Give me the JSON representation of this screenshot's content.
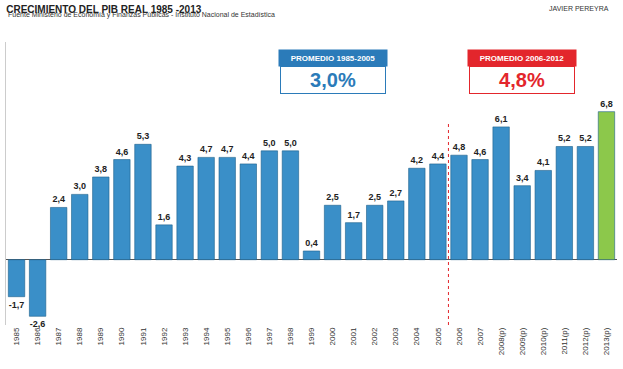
{
  "chart_data": {
    "type": "bar",
    "title": "CRECIMIENTO DEL PIB REAL 1985 -2013",
    "subtitle": "Fuente Ministerio de Economía y Finanzas Públicas - Instituto Nacional de Estadística",
    "credit": "JAVIER PEREYRA",
    "annotations": [
      {
        "title": "PROMEDIO 1985-2005",
        "text": "3,0%",
        "color": "#2b7bb9"
      },
      {
        "title": "PROMEDIO 2006-2012",
        "text": "4,8%",
        "color": "#e3262c"
      }
    ],
    "categories": [
      "1985",
      "1986",
      "1987",
      "1988",
      "1989",
      "1990",
      "1991",
      "1992",
      "1993",
      "1994",
      "1995",
      "1996",
      "1997",
      "1998",
      "1999",
      "2000",
      "2001",
      "2002",
      "2003",
      "2004",
      "2005",
      "2006",
      "2007",
      "2008(p)",
      "2009(p)",
      "2010(p)",
      "2011(p)",
      "2012(p)",
      "2013(p)"
    ],
    "values": [
      -1.7,
      -2.6,
      2.4,
      3.0,
      3.8,
      4.6,
      5.3,
      1.6,
      4.3,
      4.7,
      4.7,
      4.4,
      5.0,
      5.0,
      0.4,
      2.5,
      1.7,
      2.5,
      2.7,
      4.2,
      4.4,
      4.8,
      4.6,
      6.1,
      3.4,
      4.1,
      5.2,
      5.2,
      6.8
    ],
    "value_labels": [
      "-1,7",
      "-2,6",
      "2,4",
      "3,0",
      "3,8",
      "4,6",
      "5,3",
      "1,6",
      "4,3",
      "4,7",
      "4,7",
      "4,4",
      "5,0",
      "5,0",
      "0,4",
      "2,5",
      "1,7",
      "2,5",
      "2,7",
      "4,2",
      "4,4",
      "4,8",
      "4,6",
      "6,1",
      "3,4",
      "4,1",
      "5,2",
      "5,2",
      "6,8"
    ],
    "colors": [
      "#3a8fc8",
      "#3a8fc8",
      "#3a8fc8",
      "#3a8fc8",
      "#3a8fc8",
      "#3a8fc8",
      "#3a8fc8",
      "#3a8fc8",
      "#3a8fc8",
      "#3a8fc8",
      "#3a8fc8",
      "#3a8fc8",
      "#3a8fc8",
      "#3a8fc8",
      "#3a8fc8",
      "#3a8fc8",
      "#3a8fc8",
      "#3a8fc8",
      "#3a8fc8",
      "#3a8fc8",
      "#3a8fc8",
      "#3a8fc8",
      "#3a8fc8",
      "#3a8fc8",
      "#3a8fc8",
      "#3a8fc8",
      "#3a8fc8",
      "#3a8fc8",
      "#8cc84b"
    ],
    "ylim": [
      -3,
      10
    ],
    "yticks": [],
    "grid": false,
    "data_labels": true,
    "tick_labels": "x"
  }
}
